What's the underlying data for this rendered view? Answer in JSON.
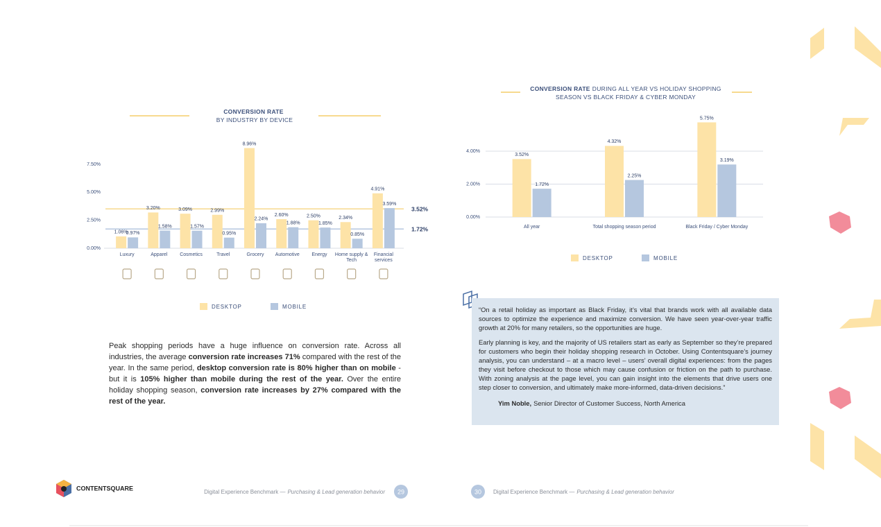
{
  "chart_data": [
    {
      "type": "bar",
      "title": "CONVERSION RATE",
      "subtitle": "BY INDUSTRY BY DEVICE",
      "categories": [
        "Luxury",
        "Apparel",
        "Cosmetics",
        "Travel",
        "Grocery",
        "Automotive",
        "Energy",
        "Home supply & Tech",
        "Financial services"
      ],
      "series": [
        {
          "name": "DESKTOP",
          "color": "#fde3a7",
          "values": [
            1.06,
            3.2,
            3.09,
            2.99,
            8.96,
            2.6,
            2.5,
            2.34,
            4.91
          ],
          "value_labels": [
            "1.06%",
            "3.20%",
            "3.09%",
            "2.99%",
            "8.96%",
            "2.60%",
            "2.50%",
            "2.34%",
            "4.91%"
          ]
        },
        {
          "name": "MOBILE",
          "color": "#b5c7df",
          "values": [
            0.97,
            1.58,
            1.57,
            0.95,
            2.24,
            1.88,
            1.85,
            0.85,
            3.59
          ],
          "value_labels": [
            "0.97%",
            "1.58%",
            "1.57%",
            "0.95%",
            "2.24%",
            "1.88%",
            "1.85%",
            "0.85%",
            "3.59%"
          ]
        }
      ],
      "ylim": [
        0,
        9.5
      ],
      "yticks": [
        {
          "value": 0,
          "label": "0.00%"
        },
        {
          "value": 2.5,
          "label": "2.50%"
        },
        {
          "value": 5,
          "label": "5.00%"
        },
        {
          "value": 7.5,
          "label": "7.50%"
        }
      ],
      "grid": false,
      "reference_lines": [
        {
          "value": 3.52,
          "label": "3.52%",
          "color": "#f7d98e"
        },
        {
          "value": 1.72,
          "label": "1.72%",
          "color": "#b5c7df"
        }
      ]
    },
    {
      "type": "bar",
      "title": "CONVERSION RATE",
      "subtitle": "DURING ALL YEAR VS HOLIDAY SHOPPING SEASON VS BLACK FRIDAY & CYBER MONDAY",
      "categories": [
        "All year",
        "Total shopping season period",
        "Black Friday / Cyber Monday"
      ],
      "series": [
        {
          "name": "DESKTOP",
          "color": "#fde3a7",
          "values": [
            3.52,
            4.32,
            5.75
          ],
          "value_labels": [
            "3.52%",
            "4.32%",
            "5.75%"
          ]
        },
        {
          "name": "MOBILE",
          "color": "#b5c7df",
          "values": [
            1.72,
            2.25,
            3.19
          ],
          "value_labels": [
            "1.72%",
            "2.25%",
            "3.19%"
          ]
        }
      ],
      "ylim": [
        0,
        6
      ],
      "yticks": [
        {
          "value": 0,
          "label": "0.00%"
        },
        {
          "value": 2,
          "label": "2.00%"
        },
        {
          "value": 4,
          "label": "4.00%"
        }
      ],
      "grid": true
    }
  ],
  "body": {
    "runs": [
      {
        "text": "Peak shopping periods have a huge influence on conversion rate. Across all industries, the average ",
        "bold": false
      },
      {
        "text": "conversion rate increases 71%",
        "bold": true
      },
      {
        "text": " compared with the rest of the year. In the same period, ",
        "bold": false
      },
      {
        "text": "desktop conversion rate is 80% higher than on mobile",
        "bold": true
      },
      {
        "text": " - but it is ",
        "bold": false
      },
      {
        "text": "105% higher than mobile during the rest of the year.",
        "bold": true
      },
      {
        "text": " Over the entire holiday shopping season, ",
        "bold": false
      },
      {
        "text": "conversion rate increases by 27% compared with the rest of the year.",
        "bold": true
      }
    ]
  },
  "quote": {
    "paragraphs": [
      "“On a retail holiday as important as Black Friday, it’s vital that brands work with all available data sources to optimize the experience and maximize conversion. We have seen year-over-year traffic growth at 20% for many retailers, so the opportunities are huge.",
      "Early planning is key, and the majority of US retailers start as early as September so they’re prepared for customers who begin their holiday shopping research in October. Using Contentsquare’s journey analysis, you can understand – at a macro level – users’ overall digital experiences: from the pages they visit before checkout to those which may cause confusion or friction on the path to purchase. With zoning analysis at the page level, you can gain insight into the elements that drive users one step closer to conversion, and ultimately make more-informed, data-driven decisions.”"
    ],
    "author": "Yim Noble,",
    "role": "Senior Director of Customer Success, North America"
  },
  "footer": {
    "brand": "CONTENTSQUARE",
    "text": "Digital Experience Benchmark —",
    "section": "Purchasing & Lead generation behavior",
    "pages": [
      29,
      30
    ]
  }
}
